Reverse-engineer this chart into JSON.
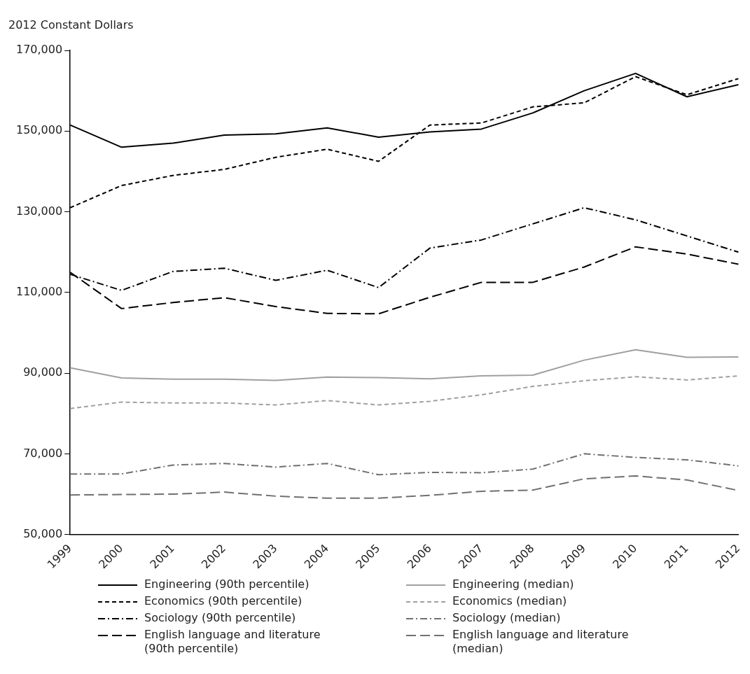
{
  "chart_data": {
    "type": "line",
    "ylabel": "2012 Constant Dollars",
    "categories": [
      "1999",
      "2000",
      "2001",
      "2002",
      "2003",
      "2004",
      "2005",
      "2006",
      "2007",
      "2008",
      "2009",
      "2010",
      "2011",
      "2012"
    ],
    "ylim": [
      50000,
      170000
    ],
    "yticks": [
      {
        "value": 50000,
        "label": "50,000"
      },
      {
        "value": 70000,
        "label": "70,000"
      },
      {
        "value": 90000,
        "label": "90,000"
      },
      {
        "value": 110000,
        "label": "110,000"
      },
      {
        "value": 130000,
        "label": "130,000"
      },
      {
        "value": 150000,
        "label": "150,000"
      },
      {
        "value": 170000,
        "label": "170,000"
      }
    ],
    "grid": false,
    "legend": "bottom",
    "marker": "none",
    "series": [
      {
        "name": "Engineering (90th percentile)",
        "color": "#000000",
        "line_style": "solid",
        "values": [
          151500,
          146000,
          147000,
          149000,
          149300,
          150800,
          148500,
          149800,
          150500,
          154500,
          160000,
          164300,
          158500,
          161500
        ]
      },
      {
        "name": "Engineering (median)",
        "color": "#a0a0a0",
        "line_style": "solid",
        "values": [
          91300,
          88800,
          88500,
          88500,
          88200,
          89000,
          88900,
          88600,
          89300,
          89500,
          93200,
          95800,
          93900,
          94000
        ]
      },
      {
        "name": "Economics (90th percentile)",
        "color": "#000000",
        "line_style": "dashed",
        "values": [
          131000,
          136500,
          139000,
          140500,
          143500,
          145500,
          142500,
          151500,
          152000,
          156000,
          157000,
          163500,
          159000,
          163000
        ]
      },
      {
        "name": "Economics (median)",
        "color": "#a0a0a0",
        "line_style": "dashed",
        "values": [
          81200,
          82800,
          82600,
          82600,
          82100,
          83200,
          82100,
          83000,
          84600,
          86700,
          88100,
          89100,
          88300,
          89300
        ]
      },
      {
        "name": "Sociology (90th percentile)",
        "color": "#000000",
        "line_style": "dashdot",
        "values": [
          114500,
          110500,
          115200,
          116000,
          113000,
          115500,
          111200,
          121000,
          123000,
          127000,
          131000,
          128000,
          124000,
          120000
        ]
      },
      {
        "name": "Sociology (median)",
        "color": "#707070",
        "line_style": "dashdot",
        "values": [
          65000,
          65000,
          67200,
          67600,
          66700,
          67600,
          64800,
          65400,
          65300,
          66200,
          70000,
          69100,
          68500,
          67000
        ]
      },
      {
        "name": "English language and literature (90th percentile)",
        "color": "#000000",
        "line_style": "longdash",
        "values": [
          115000,
          106000,
          107500,
          108700,
          106500,
          104800,
          104700,
          108800,
          112500,
          112500,
          116300,
          121300,
          119500,
          117000
        ]
      },
      {
        "name": "English language and literature (median)",
        "color": "#707070",
        "line_style": "longdash",
        "values": [
          59800,
          59900,
          60000,
          60500,
          59500,
          59000,
          59000,
          59700,
          60700,
          61000,
          63800,
          64500,
          63500,
          60900
        ]
      }
    ]
  }
}
